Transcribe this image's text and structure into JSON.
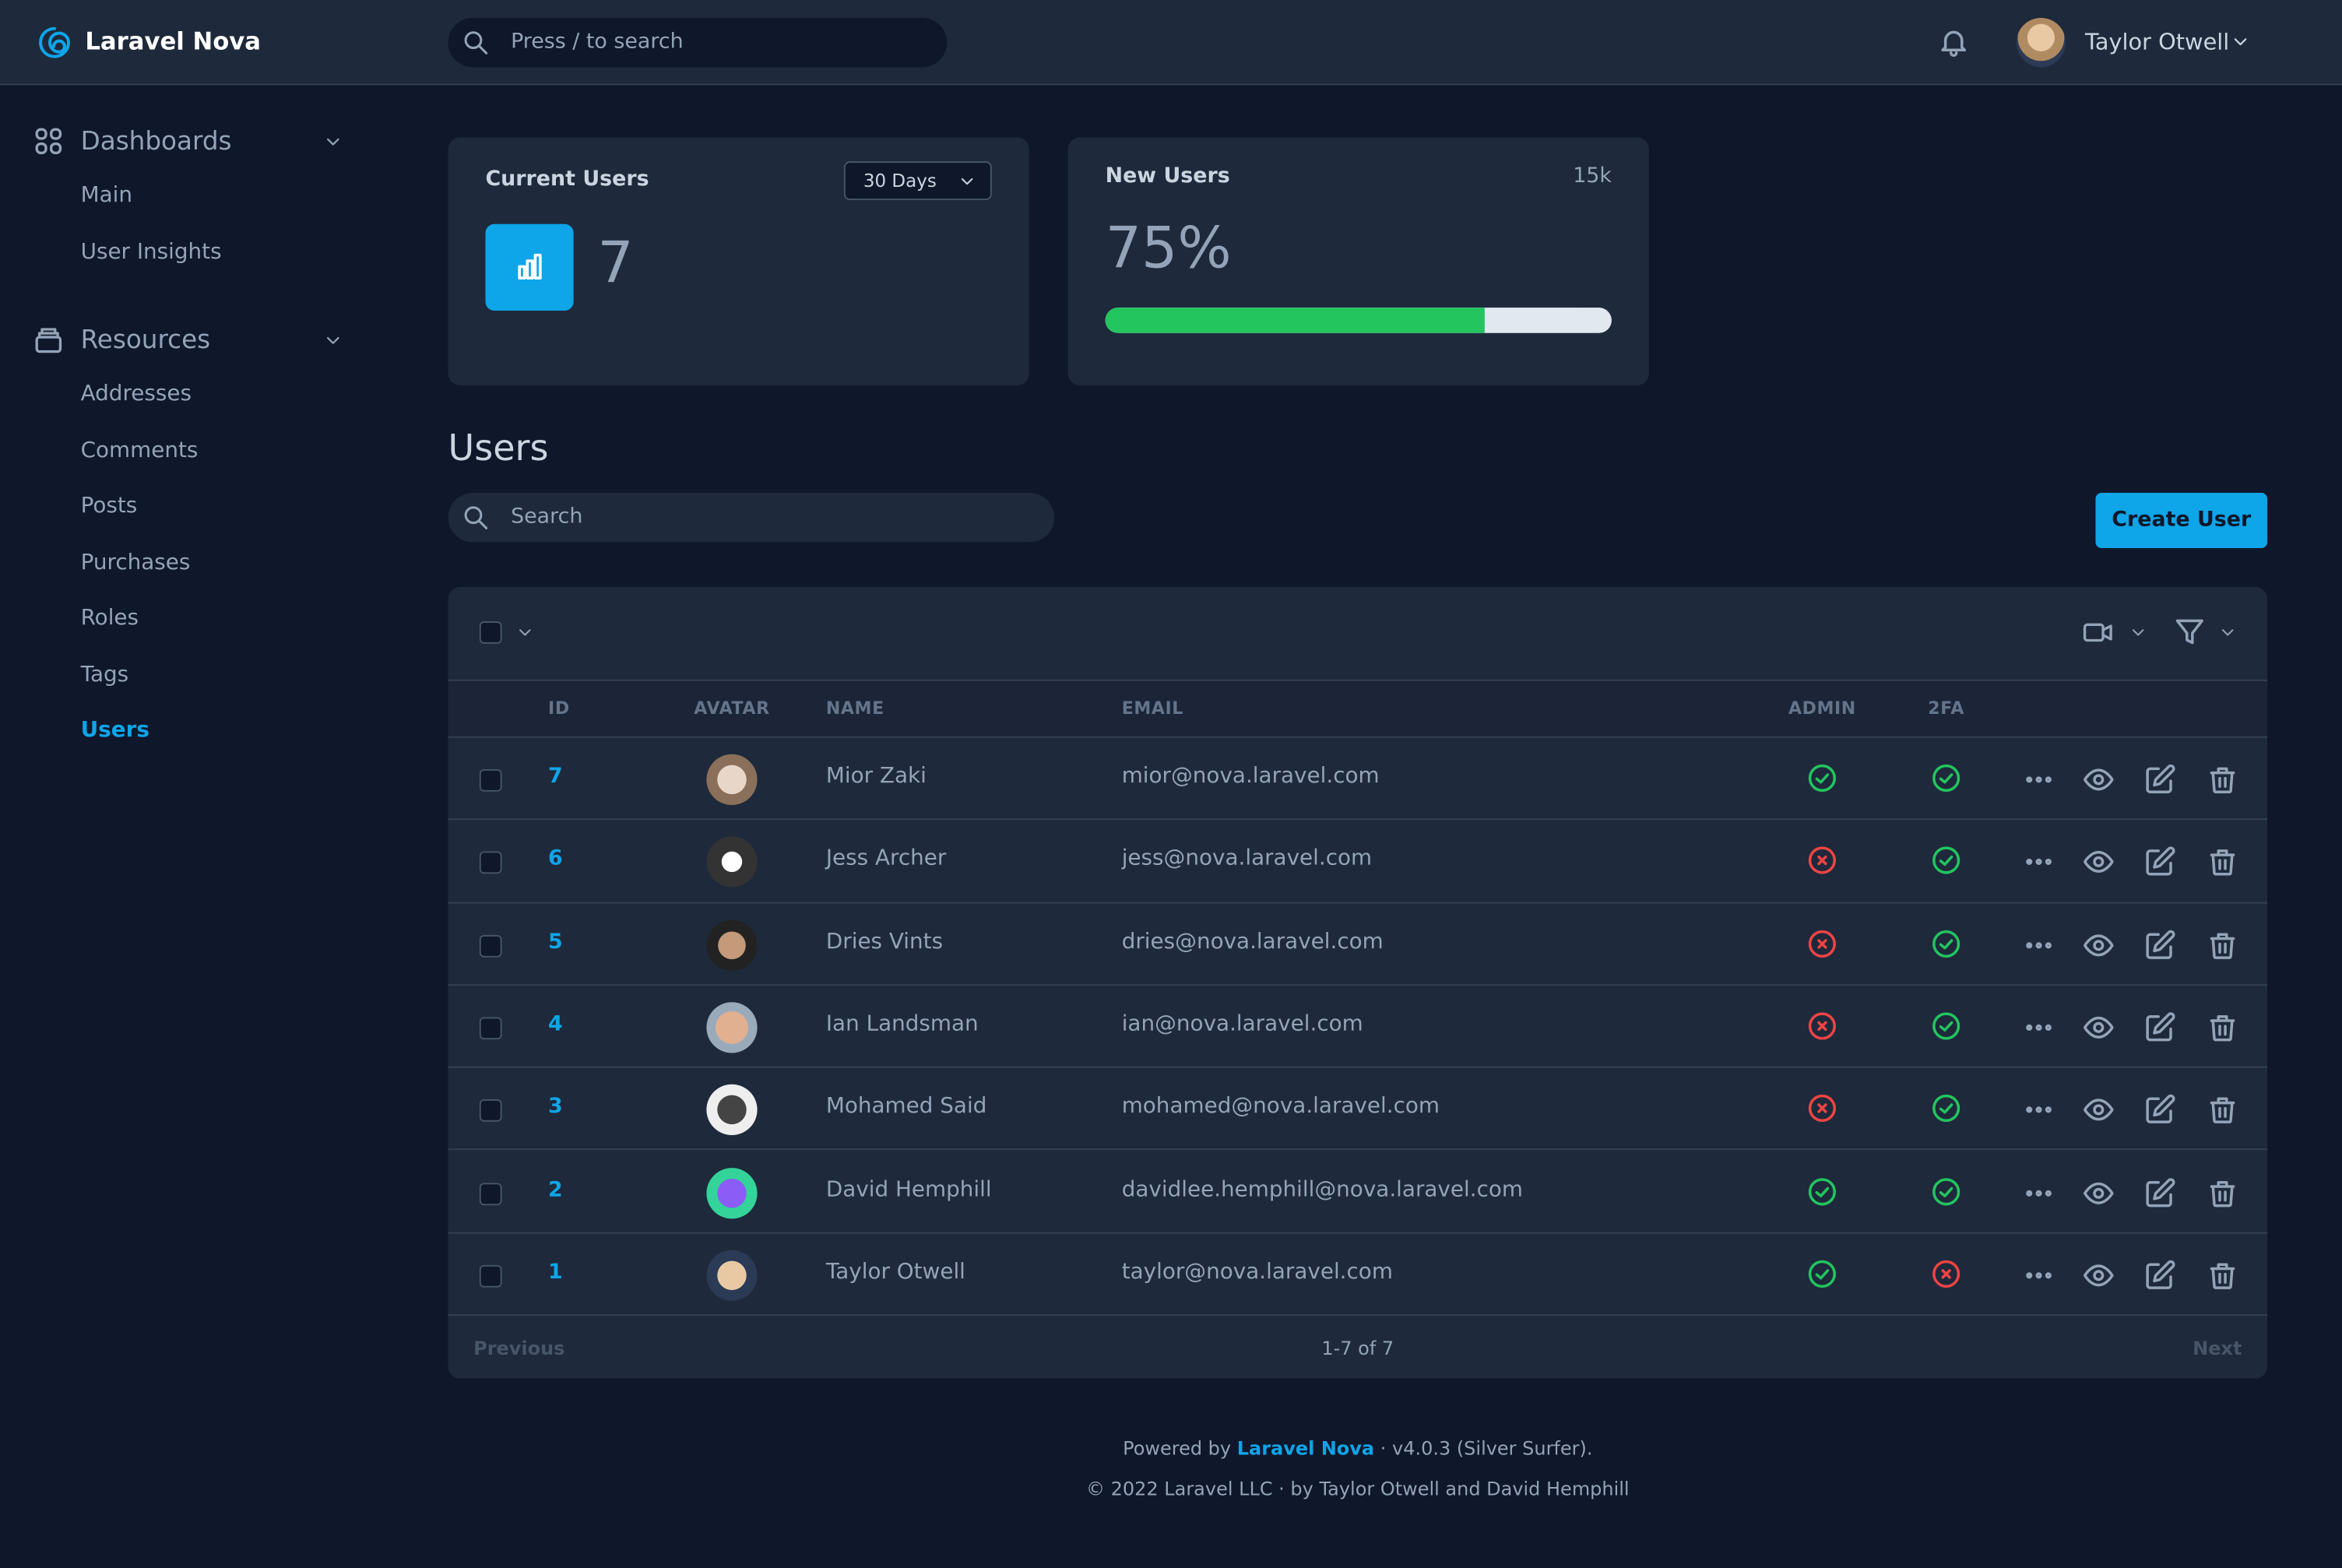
{
  "header": {
    "brand": "Laravel Nova",
    "search_placeholder": "Press / to search",
    "user_name": "Taylor Otwell"
  },
  "sidebar": {
    "sections": [
      {
        "title": "Dashboards",
        "items": [
          "Main",
          "User Insights"
        ]
      },
      {
        "title": "Resources",
        "items": [
          "Addresses",
          "Comments",
          "Posts",
          "Purchases",
          "Roles",
          "Tags",
          "Users"
        ]
      }
    ],
    "active": "Users"
  },
  "metrics": {
    "current_users": {
      "title": "Current Users",
      "range": "30 Days",
      "value": 7
    },
    "new_users": {
      "title": "New Users",
      "total": "15k",
      "percent": {
        "value": 75,
        "label": "75%"
      }
    }
  },
  "resource": {
    "title": "Users",
    "search_placeholder": "Search",
    "create_button": "Create User"
  },
  "table": {
    "columns": [
      "ID",
      "AVATAR",
      "NAME",
      "EMAIL",
      "ADMIN",
      "2FA"
    ],
    "rows": [
      {
        "id": 7,
        "name": "Mior Zaki",
        "email": "mior@nova.laravel.com",
        "admin": true,
        "two_fa": true
      },
      {
        "id": 6,
        "name": "Jess Archer",
        "email": "jess@nova.laravel.com",
        "admin": false,
        "two_fa": true
      },
      {
        "id": 5,
        "name": "Dries Vints",
        "email": "dries@nova.laravel.com",
        "admin": false,
        "two_fa": true
      },
      {
        "id": 4,
        "name": "Ian Landsman",
        "email": "ian@nova.laravel.com",
        "admin": false,
        "two_fa": true
      },
      {
        "id": 3,
        "name": "Mohamed Said",
        "email": "mohamed@nova.laravel.com",
        "admin": false,
        "two_fa": true
      },
      {
        "id": 2,
        "name": "David Hemphill",
        "email": "davidlee.hemphill@nova.laravel.com",
        "admin": true,
        "two_fa": true
      },
      {
        "id": 1,
        "name": "Taylor Otwell",
        "email": "taylor@nova.laravel.com",
        "admin": true,
        "two_fa": false
      }
    ],
    "pagination": {
      "previous": "Previous",
      "range": "1-7 of 7",
      "next": "Next"
    }
  },
  "footer": {
    "powered_by": "Powered by",
    "link": "Laravel Nova",
    "version": "· v4.0.3 (Silver Surfer).",
    "copyright": "© 2022 Laravel LLC · by Taylor Otwell and David Hemphill"
  }
}
